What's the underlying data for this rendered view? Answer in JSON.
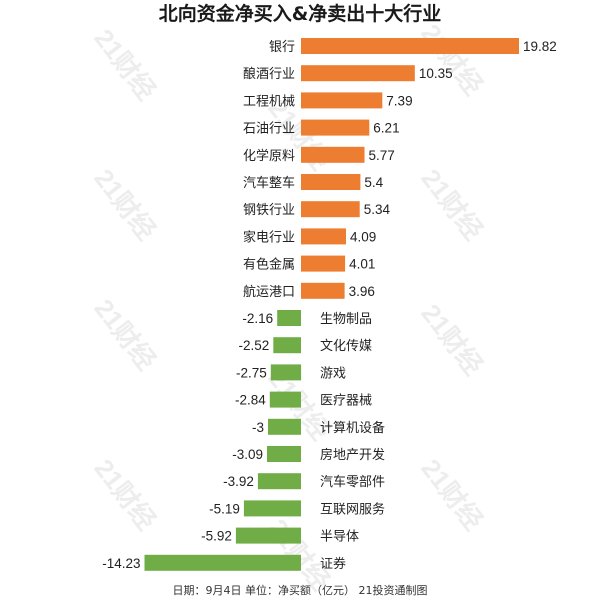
{
  "title": "北向资金净买入&净卖出十大行业",
  "footer": "日期：9月4日 单位：净买额（亿元） 21投资通制图",
  "watermark": "21财经",
  "colors": {
    "buy": "#ED7D31",
    "sell": "#70AD47",
    "text": "#222222"
  },
  "chart_data": {
    "type": "bar",
    "orientation": "horizontal",
    "title": "北向资金净买入&净卖出十大行业",
    "categories": [
      "银行",
      "酿酒行业",
      "工程机械",
      "石油行业",
      "化学原料",
      "汽车整车",
      "钢铁行业",
      "家电行业",
      "有色金属",
      "航运港口",
      "生物制品",
      "文化传媒",
      "游戏",
      "医疗器械",
      "计算机设备",
      "房地产开发",
      "汽车零部件",
      "互联网服务",
      "半导体",
      "证券"
    ],
    "values": [
      19.82,
      10.35,
      7.39,
      6.21,
      5.77,
      5.4,
      5.34,
      4.09,
      4.01,
      3.96,
      -2.16,
      -2.52,
      -2.75,
      -2.84,
      -3,
      -3.09,
      -3.92,
      -5.19,
      -5.92,
      -14.23
    ],
    "value_labels": [
      "19.82",
      "10.35",
      "7.39",
      "6.21",
      "5.77",
      "5.4",
      "5.34",
      "4.09",
      "4.01",
      "3.96",
      "-2.16",
      "-2.52",
      "-2.75",
      "-2.84",
      "-3",
      "-3.09",
      "-3.92",
      "-5.19",
      "-5.92",
      "-14.23"
    ],
    "xlim": [
      -14.23,
      19.82
    ],
    "grid": false,
    "legend": "none"
  }
}
